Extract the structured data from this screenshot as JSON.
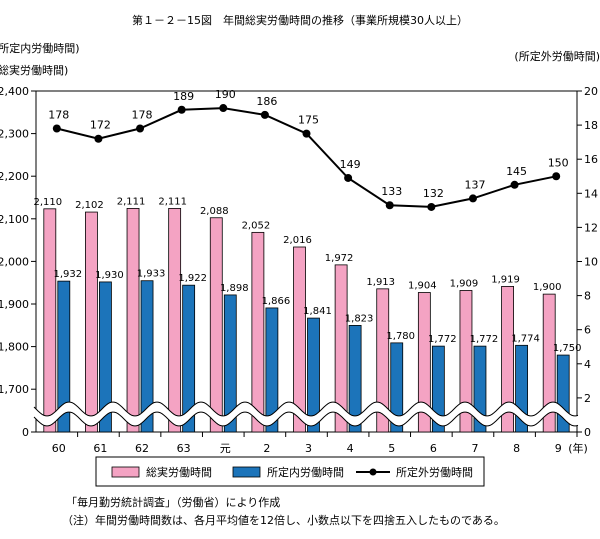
{
  "chart_data": {
    "type": "bar",
    "title": "第１－２－15図　年間総実労働時間の推移（事業所規模30人以上）",
    "left_axis_label_1": "(所定内労働時間)",
    "left_axis_label_2": "総実労働時間)",
    "right_axis_label": "(所定外労働時間)",
    "categories": [
      "60",
      "61",
      "62",
      "63",
      "元",
      "2",
      "3",
      "4",
      "5",
      "6",
      "7",
      "8",
      "9"
    ],
    "x_unit_label": "(年)",
    "left_ticks": [
      "2,400",
      "2,300",
      "2,200",
      "2,100",
      "2,000",
      "1,900",
      "1,800",
      "1,700",
      "0"
    ],
    "left_ylim": [
      1600,
      2400
    ],
    "left_axis_break": true,
    "right_ticks": [
      "20",
      "18",
      "16",
      "14",
      "12",
      "10",
      "8",
      "6",
      "4",
      "2",
      "0"
    ],
    "right_ylim": [
      0,
      20
    ],
    "series": [
      {
        "name": "総実労働時間",
        "kind": "bar",
        "axis": "left",
        "color": "#f4a3c3",
        "values": [
          2110,
          2102,
          2111,
          2111,
          2088,
          2052,
          2016,
          1972,
          1913,
          1904,
          1909,
          1919,
          1900
        ],
        "labels": [
          "2,110",
          "2,102",
          "2,111",
          "2,111",
          "2,088",
          "2,052",
          "2,016",
          "1,972",
          "1,913",
          "1,904",
          "1,909",
          "1,919",
          "1,900"
        ]
      },
      {
        "name": "所定内労働時間",
        "kind": "bar",
        "axis": "left",
        "color": "#1c74ba",
        "values": [
          1932,
          1930,
          1933,
          1922,
          1898,
          1866,
          1841,
          1823,
          1780,
          1772,
          1772,
          1774,
          1750
        ],
        "labels": [
          "1,932",
          "1,930",
          "1,933",
          "1,922",
          "1,898",
          "1,866",
          "1,841",
          "1,823",
          "1,780",
          "1,772",
          "1,772",
          "1,774",
          "1,750"
        ]
      },
      {
        "name": "所定外労働時間",
        "kind": "line",
        "axis": "right",
        "color": "#000000",
        "values": [
          178,
          172,
          178,
          189,
          190,
          186,
          175,
          149,
          133,
          132,
          137,
          145,
          150
        ],
        "labels": [
          "178",
          "172",
          "178",
          "189",
          "190",
          "186",
          "175",
          "149",
          "133",
          "132",
          "137",
          "145",
          "150"
        ]
      }
    ],
    "grid": false,
    "legend_position": "bottom",
    "source_note": "「毎月勤労統計調査」（労働省）により作成",
    "footnote": "（注）年間労働時間数は、各月平均値を12倍し、小数点以下を四捨五入したものである。"
  }
}
